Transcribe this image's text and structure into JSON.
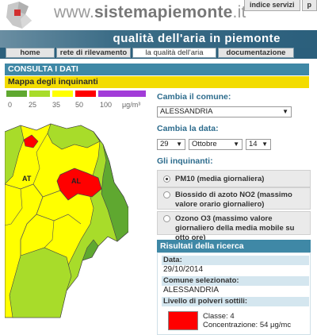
{
  "header": {
    "site_prefix": "www.",
    "site_bold": "sistemapiemonte",
    "site_suffix": ".it",
    "top_tabs": [
      "indice servizi",
      "p"
    ]
  },
  "banner": {
    "title": "qualità dell'aria in piemonte"
  },
  "nav": {
    "items": [
      "home",
      "rete di rilevamento",
      "la qualità dell'aria",
      "documentazione"
    ],
    "active_index": 2
  },
  "consulta": {
    "title": "CONSULTA I DATI"
  },
  "mappa": {
    "title": "Mappa degli inquinanti"
  },
  "legend": {
    "colors": [
      "#5fa830",
      "#a8dc2a",
      "#ffff00",
      "#ff0000",
      "#a23cd8"
    ],
    "labels": [
      "0",
      "25",
      "35",
      "50",
      "100"
    ],
    "unit": "μg/m³"
  },
  "map": {
    "labels": [
      "AT",
      "AL"
    ],
    "colors": {
      "low": "#5fa830",
      "mid": "#a8dc2a",
      "yellow": "#ffff00",
      "red": "#ff0000"
    }
  },
  "form": {
    "comune_label": "Cambia il comune:",
    "comune_value": "ALESSANDRIA",
    "data_label": "Cambia la data:",
    "day_value": "29",
    "month_value": "Ottobre",
    "year_value": "14",
    "inquinanti_label": "Gli inquinanti:",
    "options": [
      {
        "label": "PM10 (media giornaliera)",
        "selected": true
      },
      {
        "label": "Biossido di azoto NO2 (massimo valore orario giornaliero)",
        "selected": false
      },
      {
        "label": "Ozono O3 (massimo valore giornaliero della media mobile su otto ore)",
        "selected": false
      }
    ]
  },
  "results": {
    "title": "Risultati della ricerca",
    "data_label": "Data:",
    "data_value": "29/10/2014",
    "comune_label": "Comune selezionato:",
    "comune_value": "ALESSANDRIA",
    "livello_label": "Livello di polveri sottili:",
    "classe_text": "Classe: 4",
    "concentrazione_text": "Concentrazione: 54 μg/mc",
    "level_color": "#ff0000"
  }
}
